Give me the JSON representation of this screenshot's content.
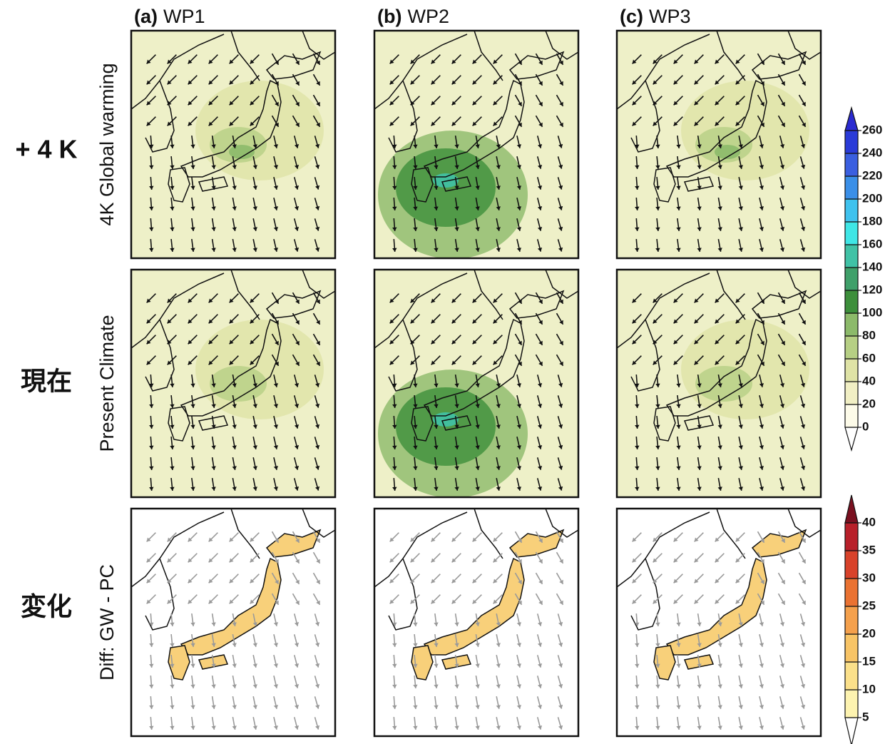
{
  "columns": [
    {
      "letter": "(a)",
      "name": "WP1"
    },
    {
      "letter": "(b)",
      "name": "WP2"
    },
    {
      "letter": "(c)",
      "name": "WP3"
    }
  ],
  "rows": [
    {
      "label": "+ 4 K",
      "axis_label": "4K Global warming"
    },
    {
      "label": "現在",
      "axis_label": "Present Climate"
    },
    {
      "label": "変化",
      "axis_label": "Diff: GW - PC"
    }
  ],
  "colorbars": [
    {
      "ticks": [
        0,
        20,
        40,
        60,
        80,
        100,
        120,
        140,
        160,
        180,
        200,
        220,
        240,
        260
      ],
      "colors": [
        "#ffffff",
        "#fdfbe9",
        "#f1efc4",
        "#dfe3a6",
        "#b6cf84",
        "#8cba6a",
        "#3d8f3b",
        "#3fa06a",
        "#40c2a6",
        "#3fe6e6",
        "#3fc2ee",
        "#3a8fe8",
        "#3a5fe0",
        "#2a3bd8",
        "#2a2ad0"
      ]
    },
    {
      "ticks": [
        5,
        10,
        15,
        20,
        25,
        30,
        35,
        40
      ],
      "colors": [
        "#ffffff",
        "#fdf3b0",
        "#fbe08a",
        "#f8c466",
        "#f4a04c",
        "#ea7232",
        "#d8422a",
        "#b8202a",
        "#7a1020"
      ]
    }
  ]
}
